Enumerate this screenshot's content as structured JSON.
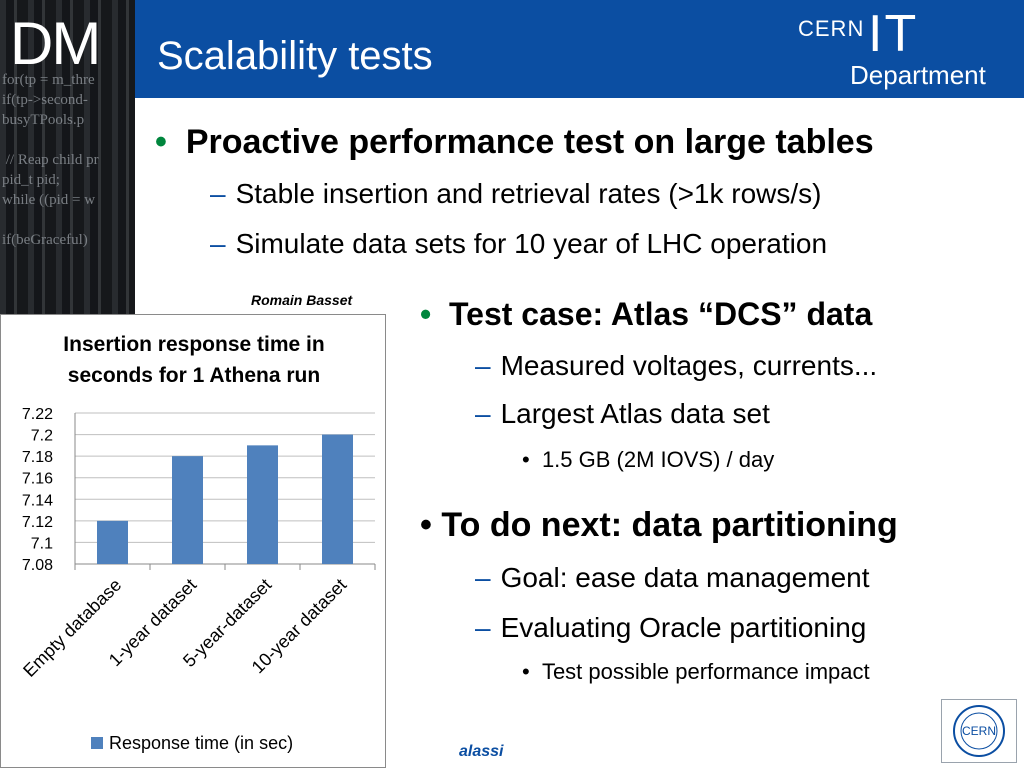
{
  "header": {
    "logo_text": "DM",
    "title": "Scalability tests",
    "cern_logo": {
      "cern": "CERN",
      "it": "IT",
      "department": "Department"
    }
  },
  "bullets": {
    "main1": "Proactive performance test on large tables",
    "main1_subs": [
      "Stable insertion and retrieval rates (>1k rows/s)",
      "Simulate data sets for 10 year of LHC operation"
    ],
    "main2": "Test case: Atlas “DCS” data",
    "main2_subs": [
      "Measured voltages, currents...",
      "Largest Atlas data set"
    ],
    "main2_subsub": "1.5 GB (2M IOVS) / day",
    "main3": "To do next: data partitioning",
    "main3_subs": [
      "Goal: ease data management",
      "Evaluating Oracle partitioning"
    ],
    "main3_subsub": "Test possible performance impact"
  },
  "chart_author": "Romain Basset",
  "footer_name": "alassi",
  "colors": {
    "header_blue": "#0b4ea2",
    "bar_blue": "#4f81bd",
    "bullet_green": "#00863d"
  },
  "chart_data": {
    "type": "bar",
    "title_lines": [
      "Insertion response time in",
      "seconds for 1 Athena run"
    ],
    "categories": [
      "Empty database",
      "1-year dataset",
      "5-year-dataset",
      "10-year dataset"
    ],
    "series": [
      {
        "name": "Response time (in sec)",
        "values": [
          7.12,
          7.18,
          7.19,
          7.2
        ]
      }
    ],
    "yticks": [
      "7.08",
      "7.1",
      "7.12",
      "7.14",
      "7.16",
      "7.18",
      "7.2",
      "7.22"
    ],
    "ylim": [
      7.08,
      7.22
    ],
    "grid": true,
    "legend": "bottom"
  }
}
